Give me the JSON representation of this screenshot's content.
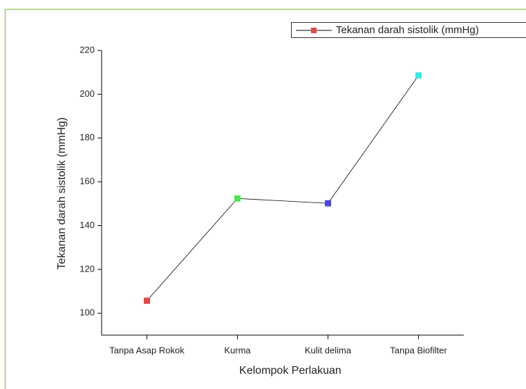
{
  "chart_data": {
    "type": "line",
    "xlabel": "Kelompok Perlakuan",
    "ylabel": "Tekanan darah sistolik (mmHg)",
    "categories": [
      "Tanpa Asap Rokok",
      "Kurma",
      "Kulit delima",
      "Tanpa Biofilter"
    ],
    "series": [
      {
        "name": "Tekanan darah sistolik (mmHg)",
        "color": "#000000",
        "marker_colors": [
          "#e04848",
          "#48e848",
          "#4848e0",
          "#38e8e8"
        ],
        "values": [
          105.7,
          152.4,
          150.2,
          208.6
        ]
      }
    ],
    "ylim": [
      90,
      220
    ],
    "yticks": [
      100,
      120,
      140,
      160,
      180,
      200,
      220
    ],
    "legend": "top-right"
  }
}
